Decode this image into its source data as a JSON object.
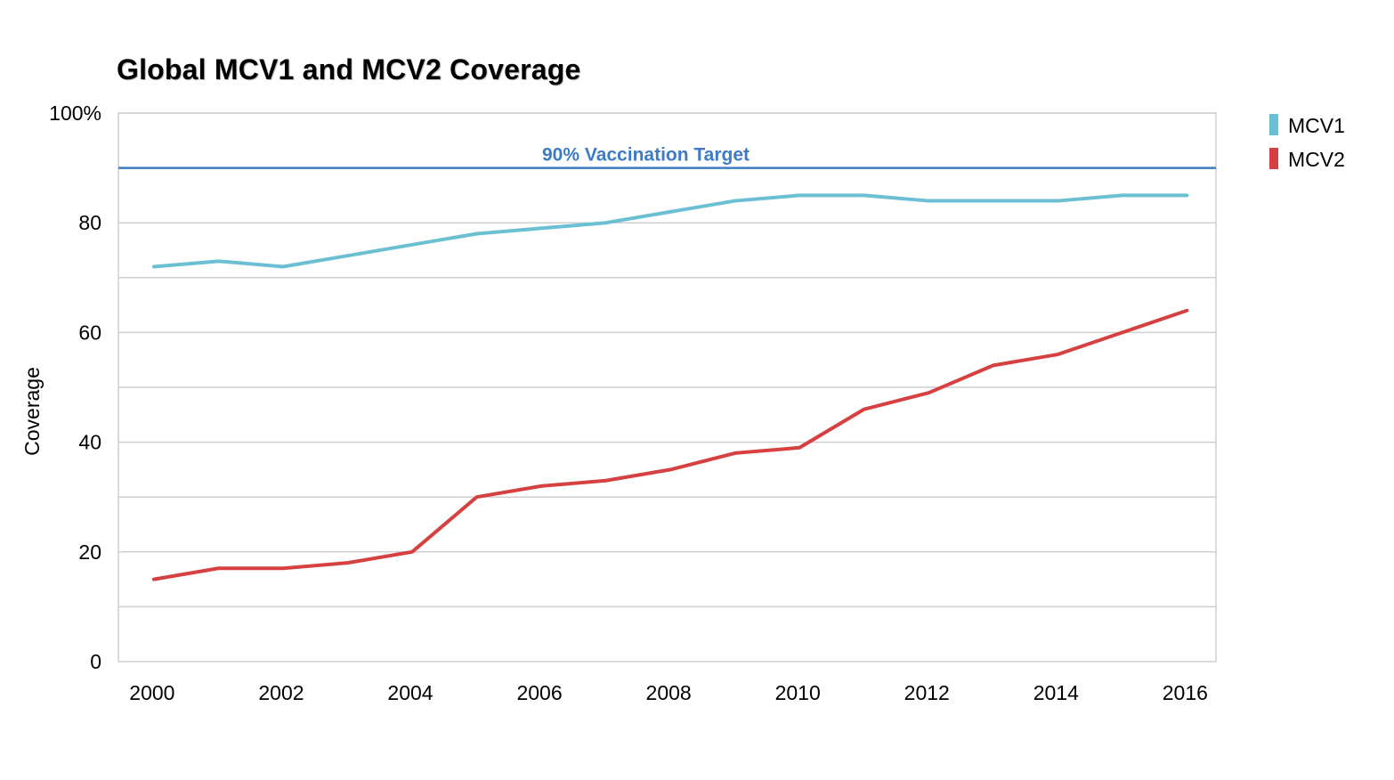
{
  "chart_data": {
    "type": "line",
    "title": "Global MCV1 and MCV2 Coverage",
    "xlabel": "",
    "ylabel": "Coverage",
    "x": [
      2000,
      2001,
      2002,
      2003,
      2004,
      2005,
      2006,
      2007,
      2008,
      2009,
      2010,
      2011,
      2012,
      2013,
      2014,
      2015,
      2016
    ],
    "xlim": [
      1999.45,
      2016.45
    ],
    "ylim": [
      0,
      100
    ],
    "x_ticks": [
      "2000",
      "2002",
      "2004",
      "2006",
      "2008",
      "2010",
      "2012",
      "2014",
      "2016"
    ],
    "y_ticks": [
      "0",
      "20",
      "40",
      "60",
      "80",
      "100%"
    ],
    "y_tick_values": [
      0,
      20,
      40,
      60,
      80,
      100
    ],
    "gridlines_y": [
      10,
      20,
      30,
      40,
      50,
      60,
      70,
      80,
      90,
      100
    ],
    "grid": true,
    "legend_position": "top-right",
    "series": [
      {
        "name": "MCV1",
        "color": "#6bbfd3",
        "values": [
          72,
          73,
          72,
          74,
          76,
          78,
          79,
          80,
          82,
          84,
          85,
          85,
          84,
          84,
          84,
          85,
          85
        ]
      },
      {
        "name": "MCV2",
        "color": "#d64040",
        "values": [
          15,
          17,
          17,
          18,
          20,
          30,
          32,
          33,
          35,
          38,
          39,
          46,
          49,
          54,
          56,
          60,
          64
        ]
      }
    ],
    "annotations": [
      {
        "type": "hline",
        "y": 90,
        "text": "90% Vaccination Target",
        "color": "#3d7cc4"
      }
    ]
  }
}
